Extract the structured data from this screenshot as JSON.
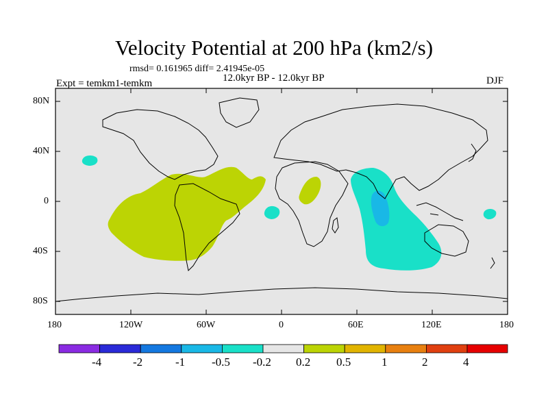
{
  "title": "Velocity Potential at 200 hPa (km2/s)",
  "stats": "rmsd= 0.161965 diff= 2.41945e-05",
  "period": "12.0kyr BP - 12.0kyr BP",
  "experiment": "Expt = temkm1-temkm",
  "season": "DJF",
  "lat_ticks": [
    "80N",
    "40N",
    "0",
    "40S",
    "80S"
  ],
  "lon_ticks": [
    "180",
    "120W",
    "60W",
    "0",
    "60E",
    "120E",
    "180"
  ],
  "colorbar": {
    "labels": [
      "-4",
      "-2",
      "-1",
      "-0.5",
      "-0.2",
      "0.2",
      "0.5",
      "1",
      "2",
      "4"
    ],
    "colors": [
      "#8a2be2",
      "#2a2ad8",
      "#1478e0",
      "#19b8e6",
      "#19e0c8",
      "#e6e6e6",
      "#bcd404",
      "#e1b400",
      "#e88010",
      "#e04010",
      "#e60000"
    ]
  },
  "field_colors": {
    "background": "#e6e6e6",
    "positive_0.2_0.5": "#bcd404",
    "negative_-0.5_-0.2": "#19e0c8",
    "negative_-1_-0.5": "#19b8e6"
  }
}
